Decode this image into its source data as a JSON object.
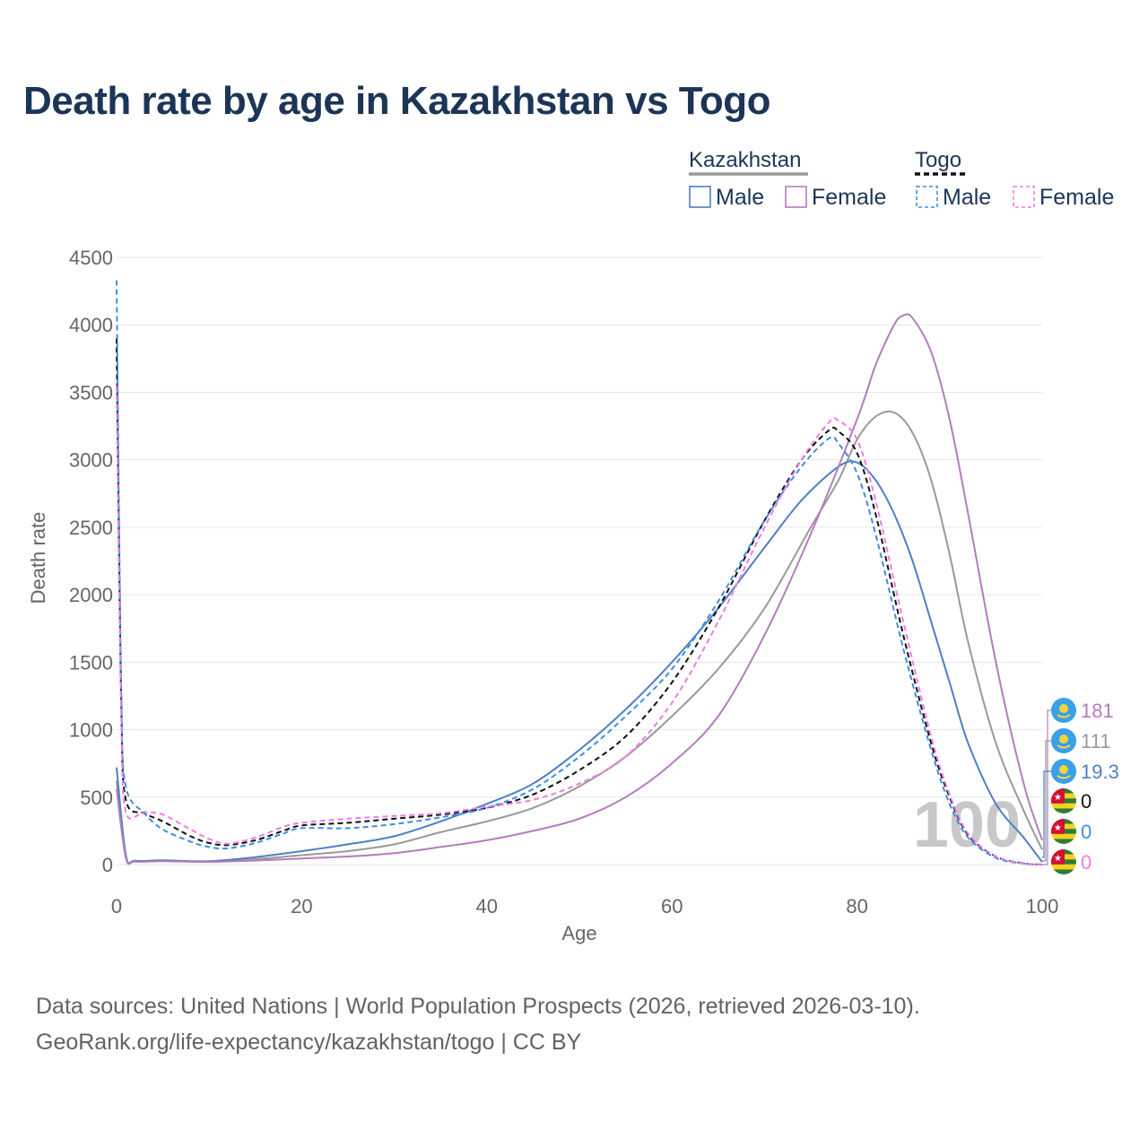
{
  "chart_data": {
    "type": "line",
    "title": "Death rate by age in Kazakhstan vs Togo",
    "xlabel": "Age",
    "ylabel": "Death rate",
    "xlim": [
      0,
      100
    ],
    "ylim": [
      0,
      4500
    ],
    "x_ticks": [
      0,
      20,
      40,
      60,
      80,
      100
    ],
    "y_ticks": [
      0,
      500,
      1000,
      1500,
      2000,
      2500,
      3000,
      3500,
      4000,
      4500
    ],
    "grid": true,
    "legend": {
      "groups": [
        {
          "country": "Kazakhstan",
          "entries": [
            "Male",
            "Female"
          ]
        },
        {
          "country": "Togo",
          "entries": [
            "Male",
            "Female"
          ]
        }
      ],
      "position": "top-right"
    },
    "year_watermark": "100",
    "series": [
      {
        "name": "Kazakhstan Total",
        "color": "#999999",
        "dash": "solid",
        "x": [
          0,
          1,
          2,
          5,
          10,
          15,
          20,
          25,
          30,
          35,
          40,
          45,
          50,
          55,
          60,
          65,
          70,
          75,
          78,
          80,
          82,
          84,
          86,
          88,
          90,
          92,
          95,
          98,
          100
        ],
        "y": [
          620,
          60,
          25,
          28,
          22,
          40,
          70,
          100,
          150,
          240,
          320,
          420,
          580,
          800,
          1100,
          1450,
          1900,
          2500,
          2850,
          3150,
          3320,
          3350,
          3200,
          2850,
          2300,
          1650,
          900,
          400,
          111
        ]
      },
      {
        "name": "Kazakhstan Male",
        "color": "#4f7fc4",
        "dash": "solid",
        "x": [
          0,
          1,
          2,
          5,
          10,
          15,
          20,
          25,
          30,
          35,
          40,
          45,
          50,
          55,
          60,
          65,
          70,
          74,
          78,
          80,
          82,
          84,
          86,
          88,
          90,
          92,
          95,
          98,
          100
        ],
        "y": [
          720,
          70,
          28,
          32,
          25,
          55,
          100,
          150,
          210,
          320,
          450,
          600,
          850,
          1150,
          1500,
          1900,
          2350,
          2700,
          2950,
          2980,
          2850,
          2600,
          2250,
          1800,
          1350,
          900,
          450,
          200,
          19.3
        ]
      },
      {
        "name": "Kazakhstan Female",
        "color": "#b57bc0",
        "dash": "solid",
        "x": [
          0,
          1,
          2,
          5,
          10,
          15,
          20,
          25,
          30,
          35,
          40,
          45,
          50,
          55,
          60,
          65,
          70,
          75,
          80,
          82,
          84,
          85,
          86,
          88,
          90,
          92,
          95,
          98,
          100
        ],
        "y": [
          560,
          50,
          22,
          25,
          20,
          30,
          45,
          60,
          85,
          130,
          180,
          250,
          340,
          500,
          750,
          1100,
          1700,
          2450,
          3300,
          3700,
          4000,
          4070,
          4050,
          3800,
          3300,
          2600,
          1500,
          600,
          181
        ]
      },
      {
        "name": "Togo Total",
        "color": "#111111",
        "dash": "dashed",
        "x": [
          0,
          0.5,
          1,
          3,
          5,
          8,
          10,
          12,
          15,
          18,
          20,
          25,
          30,
          35,
          40,
          45,
          50,
          55,
          60,
          65,
          70,
          74,
          77,
          78,
          80,
          82,
          85,
          88,
          90,
          92,
          95,
          98,
          100
        ],
        "y": [
          3900,
          1200,
          480,
          380,
          320,
          210,
          160,
          145,
          180,
          250,
          290,
          310,
          340,
          370,
          420,
          520,
          700,
          950,
          1350,
          1900,
          2550,
          3000,
          3220,
          3210,
          3050,
          2600,
          1700,
          900,
          500,
          220,
          60,
          10,
          0
        ]
      },
      {
        "name": "Togo Male",
        "color": "#3d8de6",
        "dash": "dashed",
        "x": [
          0,
          0.5,
          1,
          3,
          5,
          8,
          10,
          12,
          15,
          18,
          20,
          25,
          30,
          35,
          40,
          45,
          50,
          55,
          60,
          65,
          70,
          74,
          77,
          78,
          80,
          82,
          85,
          88,
          90,
          92,
          95,
          98,
          100
        ],
        "y": [
          4330,
          1300,
          580,
          380,
          260,
          170,
          130,
          120,
          160,
          230,
          270,
          270,
          300,
          350,
          420,
          560,
          800,
          1100,
          1450,
          1950,
          2550,
          2950,
          3160,
          3120,
          2900,
          2450,
          1600,
          850,
          450,
          200,
          50,
          8,
          0
        ]
      },
      {
        "name": "Togo Female",
        "color": "#f07ce8",
        "dash": "dashed",
        "x": [
          0,
          0.5,
          1,
          3,
          5,
          8,
          10,
          12,
          15,
          18,
          20,
          25,
          30,
          35,
          40,
          45,
          50,
          55,
          60,
          65,
          70,
          74,
          77,
          78,
          80,
          82,
          85,
          88,
          90,
          92,
          95,
          98,
          100
        ],
        "y": [
          3550,
          1100,
          390,
          390,
          370,
          260,
          190,
          155,
          200,
          280,
          310,
          340,
          360,
          380,
          430,
          480,
          600,
          800,
          1200,
          1800,
          2500,
          3000,
          3280,
          3290,
          3150,
          2700,
          1800,
          950,
          520,
          230,
          60,
          10,
          0
        ]
      }
    ],
    "end_labels": [
      {
        "country": "Kazakhstan",
        "value": "181",
        "color": "#b57bc0"
      },
      {
        "country": "Kazakhstan",
        "value": "111",
        "color": "#999999"
      },
      {
        "country": "Kazakhstan",
        "value": "19.3",
        "color": "#4f7fc4"
      },
      {
        "country": "Togo",
        "value": "0",
        "color": "#111111"
      },
      {
        "country": "Togo",
        "value": "0",
        "color": "#3d8de6"
      },
      {
        "country": "Togo",
        "value": "0",
        "color": "#f07ce8"
      }
    ]
  },
  "source": {
    "line1": "Data sources: United Nations | World Population Prospects (2026, retrieved 2026-03-10).",
    "line2": "GeoRank.org/life-expectancy/kazakhstan/togo | CC BY"
  },
  "colors": {
    "title": "#1c3557",
    "grid": "#e6e6e6",
    "axis_text": "#666666",
    "watermark": "#c8c8c8",
    "kazakhstan_flag": "#3aa0e8",
    "kazakhstan_flag_sun": "#f5d33a",
    "togo_green": "#2e7d32",
    "togo_yellow": "#f6d21d",
    "togo_red": "#d21034"
  }
}
